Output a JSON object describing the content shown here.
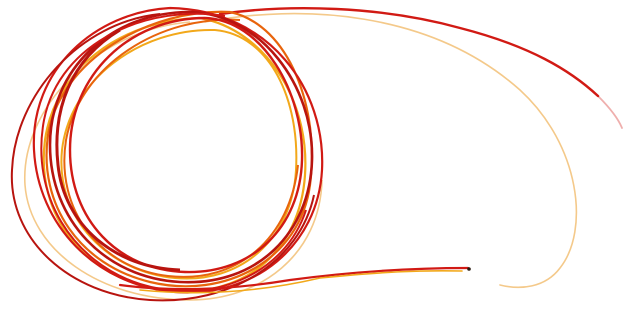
{
  "image": {
    "subject": "thermocouple-wire-coil",
    "background_color": "#ffffff",
    "colors": {
      "red_wire": "#d11a14",
      "red_wire_dark": "#b8140f",
      "orange_wire": "#e8640c",
      "yellow_wire": "#f2a81a",
      "pale_yellow_wire": "#f4c98a",
      "wire_tip": "#2a1a10"
    }
  }
}
